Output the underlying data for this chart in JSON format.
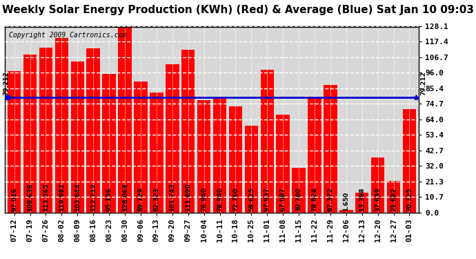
{
  "title": "Weekly Solar Energy Production (KWh) (Red) & Average (Blue) Sat Jan 10 09:03",
  "copyright": "Copyright 2009 Cartronics.com",
  "categories": [
    "07-12",
    "07-19",
    "07-26",
    "08-02",
    "08-09",
    "08-16",
    "08-23",
    "08-30",
    "09-06",
    "09-13",
    "09-20",
    "09-27",
    "10-04",
    "10-11",
    "10-18",
    "10-25",
    "11-01",
    "11-08",
    "11-15",
    "11-22",
    "11-29",
    "12-06",
    "12-13",
    "12-20",
    "12-27",
    "01-03"
  ],
  "values": [
    97.016,
    108.638,
    113.365,
    119.982,
    103.644,
    112.712,
    95.156,
    128.064,
    89.729,
    82.323,
    101.743,
    111.89,
    76.94,
    78.94,
    72.76,
    59.625,
    97.937,
    67.087,
    30.78,
    78.824,
    87.372,
    1.65,
    13.388,
    37.639,
    21.682,
    70.725
  ],
  "average": 79.212,
  "bar_color": "#ff0000",
  "avg_line_color": "#0000cd",
  "bg_color": "#ffffff",
  "plot_bg_color": "#d8d8d8",
  "grid_color": "#ffffff",
  "yticks": [
    0.0,
    10.7,
    21.3,
    32.0,
    42.7,
    53.4,
    64.0,
    74.7,
    85.4,
    96.0,
    106.7,
    117.4,
    128.1
  ],
  "ylim": [
    0,
    128.1
  ],
  "title_fontsize": 11,
  "copyright_fontsize": 7,
  "bar_label_fontsize": 6.5,
  "tick_fontsize": 8,
  "avg_label": "79.212"
}
